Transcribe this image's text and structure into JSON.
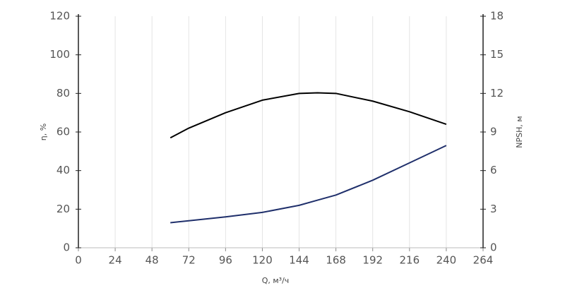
{
  "chart_data": {
    "type": "line",
    "x_label": "Q, м³/ч",
    "y_label": "η, %",
    "y2_label": "NPSH, м",
    "x": [
      60,
      72,
      96,
      120,
      144,
      156,
      168,
      192,
      216,
      240
    ],
    "series": [
      {
        "color": "#000000",
        "values": [
          57,
          62,
          70,
          76.5,
          80,
          80.3,
          80,
          76,
          70.5,
          64
        ]
      },
      {
        "color": "#1f2f6b",
        "axis": "y2",
        "values": [
          1.95,
          2.1,
          2.4,
          2.75,
          3.3,
          3.7,
          4.1,
          5.25,
          6.6,
          7.95
        ]
      }
    ],
    "xlim": [
      0,
      264
    ],
    "xticks": [
      0,
      24,
      48,
      72,
      96,
      120,
      144,
      168,
      192,
      216,
      240,
      264
    ],
    "ylim": [
      0,
      120
    ],
    "yticks": [
      0,
      20,
      40,
      60,
      80,
      100,
      120
    ],
    "y2lim": [
      0,
      18
    ],
    "y2ticks": [
      0,
      3,
      6,
      9,
      12,
      15,
      18
    ],
    "grid": true
  }
}
